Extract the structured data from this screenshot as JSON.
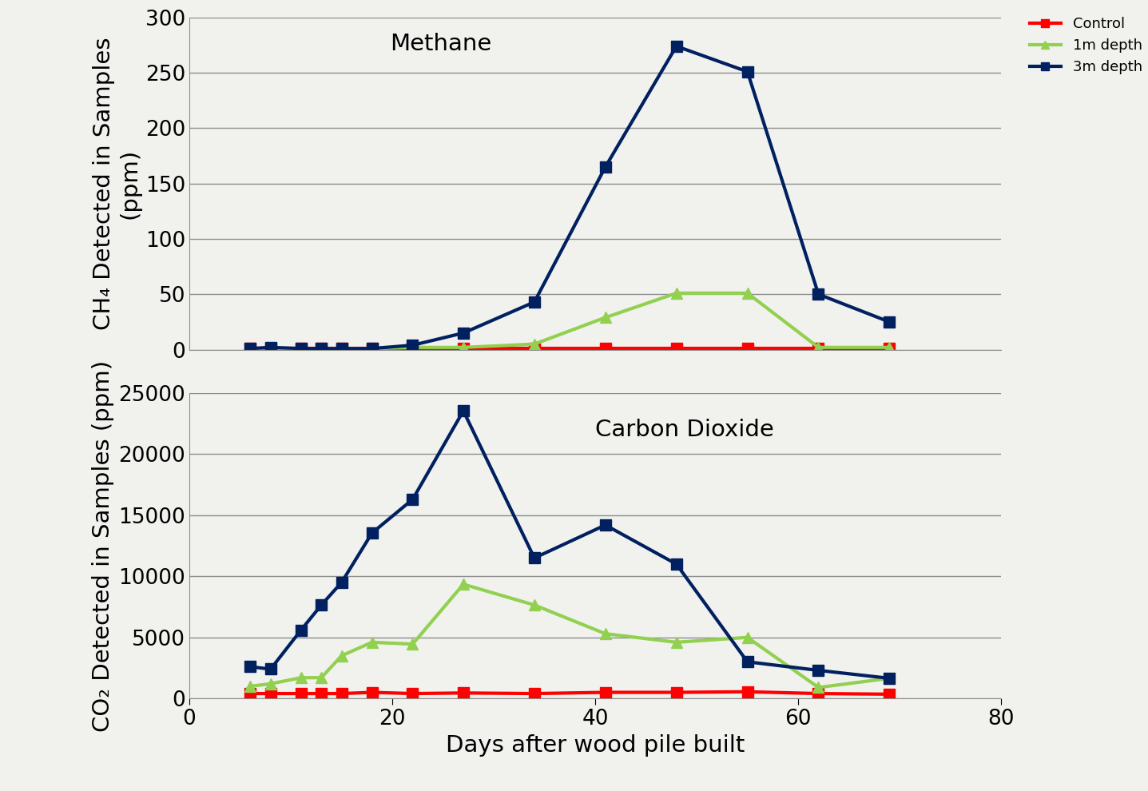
{
  "chart_data": [
    {
      "type": "line",
      "title": "Methane",
      "ylabel": "CH₄ Detected in Samples (ppm)",
      "x": [
        6,
        8,
        11,
        13,
        15,
        18,
        22,
        27,
        34,
        41,
        48,
        55,
        62,
        69
      ],
      "xlim": [
        0,
        80
      ],
      "ylim": [
        0,
        300
      ],
      "yticks": [
        0,
        50,
        100,
        150,
        200,
        250,
        300
      ],
      "grid": true,
      "tick_labels": "y",
      "legend": "upper right",
      "series": [
        {
          "name": "Control",
          "color": "#ff0000",
          "marker": "square",
          "values": [
            1,
            1,
            1,
            1,
            1,
            1,
            1,
            1,
            1,
            1,
            1,
            1,
            1,
            1
          ]
        },
        {
          "name": "1m depth",
          "color": "#92d050",
          "marker": "triangle",
          "values": [
            1,
            1,
            1,
            1,
            1,
            1,
            2,
            2,
            5,
            29,
            51,
            51,
            2,
            2
          ]
        },
        {
          "name": "3m depth",
          "color": "#002060",
          "marker": "square",
          "values": [
            1,
            2,
            1,
            1,
            1,
            1,
            4,
            15,
            43,
            165,
            274,
            251,
            50,
            25
          ]
        }
      ]
    },
    {
      "type": "line",
      "title": "Carbon Dioxide",
      "ylabel": "CO₂ Detected in Samples (ppm)",
      "xlabel": "Days after wood pile built",
      "x": [
        6,
        8,
        11,
        13,
        15,
        18,
        22,
        27,
        34,
        41,
        48,
        55,
        62,
        69
      ],
      "xlim": [
        0,
        80
      ],
      "xticks": [
        0,
        20,
        40,
        60,
        80
      ],
      "ylim": [
        0,
        25000
      ],
      "yticks": [
        0,
        5000,
        10000,
        15000,
        20000,
        25000
      ],
      "grid": true,
      "series": [
        {
          "name": "Control",
          "color": "#ff0000",
          "marker": "square",
          "values": [
            400,
            400,
            400,
            400,
            400,
            500,
            400,
            450,
            400,
            500,
            500,
            550,
            400,
            350
          ]
        },
        {
          "name": "1m depth",
          "color": "#92d050",
          "marker": "triangle",
          "values": [
            1000,
            1200,
            1700,
            1700,
            3500,
            4600,
            4450,
            9350,
            7650,
            5300,
            4600,
            5000,
            900,
            1650
          ]
        },
        {
          "name": "3m depth",
          "color": "#002060",
          "marker": "square",
          "values": [
            2600,
            2400,
            5600,
            7650,
            9500,
            13550,
            16300,
            23550,
            11500,
            14200,
            11000,
            3000,
            2300,
            1650
          ]
        }
      ]
    }
  ]
}
